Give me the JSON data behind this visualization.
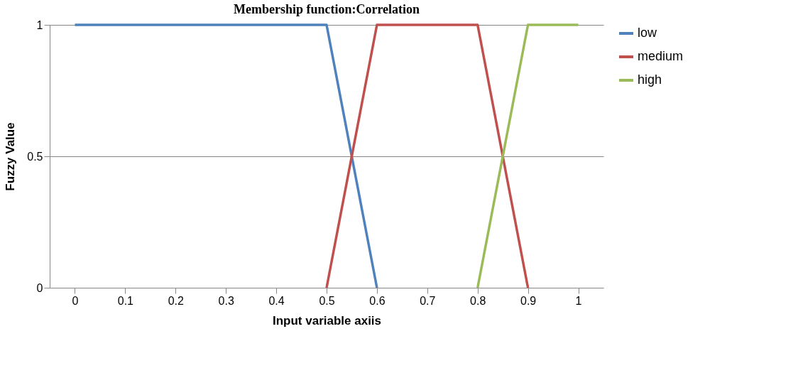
{
  "chart_data": {
    "type": "line",
    "title": "Membership function:Correlation",
    "xlabel": "Input variable axiis",
    "ylabel": "Fuzzy Value",
    "categories": [
      "0",
      "0.1",
      "0.2",
      "0.3",
      "0.4",
      "0.5",
      "0.6",
      "0.7",
      "0.8",
      "0.9",
      "1"
    ],
    "series": [
      {
        "name": "low",
        "color": "#4f81bd",
        "values": [
          1,
          1,
          1,
          1,
          1,
          1,
          0,
          null,
          null,
          null,
          null
        ]
      },
      {
        "name": "medium",
        "color": "#c0504d",
        "values": [
          null,
          null,
          null,
          null,
          null,
          0,
          1,
          1,
          1,
          0,
          null
        ]
      },
      {
        "name": "high",
        "color": "#9bbb59",
        "values": [
          null,
          null,
          null,
          null,
          null,
          null,
          null,
          null,
          0,
          1,
          1
        ]
      }
    ],
    "ylim": [
      0,
      1
    ],
    "yticks": [
      0,
      0.5,
      1
    ],
    "grid": "y",
    "legend": "right",
    "marker": "none",
    "line_style": "solid"
  }
}
